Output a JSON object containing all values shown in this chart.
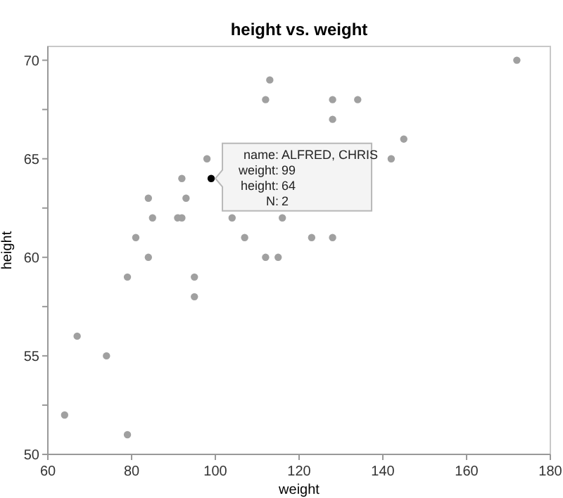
{
  "chart_data": {
    "type": "scatter",
    "title": "height vs. weight",
    "xlabel": "weight",
    "ylabel": "height",
    "x": [
      64,
      67,
      74,
      79,
      79,
      81,
      84,
      84,
      85,
      91,
      92,
      92,
      93,
      95,
      95,
      98,
      99,
      113,
      112,
      128,
      134,
      128,
      104,
      116,
      107,
      123,
      128,
      112,
      115,
      172,
      145,
      142
    ],
    "values": [
      52,
      56,
      55,
      51,
      59,
      61,
      60,
      63,
      62,
      62,
      62,
      64,
      63,
      59,
      58,
      65,
      64,
      69,
      68,
      68,
      68,
      67,
      62,
      62,
      61,
      61,
      61,
      60,
      60,
      70,
      66,
      65
    ],
    "colors": [
      "#a0a0a0",
      "#a0a0a0",
      "#a0a0a0",
      "#a0a0a0",
      "#a0a0a0",
      "#a0a0a0",
      "#a0a0a0",
      "#a0a0a0",
      "#a0a0a0",
      "#a0a0a0",
      "#a0a0a0",
      "#a0a0a0",
      "#a0a0a0",
      "#a0a0a0",
      "#a0a0a0",
      "#a0a0a0",
      "#000000",
      "#a0a0a0",
      "#a0a0a0",
      "#a0a0a0",
      "#a0a0a0",
      "#a0a0a0",
      "#a0a0a0",
      "#a0a0a0",
      "#a0a0a0",
      "#a0a0a0",
      "#a0a0a0",
      "#a0a0a0",
      "#a0a0a0",
      "#a0a0a0",
      "#a0a0a0",
      "#a0a0a0"
    ],
    "marker": "circle",
    "xlim": [
      60,
      180
    ],
    "xticks": [
      60,
      80,
      100,
      120,
      140,
      160,
      180
    ],
    "ylim": [
      50,
      70.7
    ],
    "yticks": [
      50,
      {
        "value": 52.5,
        "label": null
      },
      55,
      {
        "value": 57.5,
        "label": null
      },
      60,
      {
        "value": 62.5,
        "label": null
      },
      65,
      {
        "value": 67.5,
        "label": null
      },
      70
    ],
    "grid": false,
    "annotations": [
      {
        "text": "name: ALFRED, CHRIS\nweight: 99\nheight: 64\nN: 2",
        "x": 99,
        "y": 64
      }
    ]
  }
}
